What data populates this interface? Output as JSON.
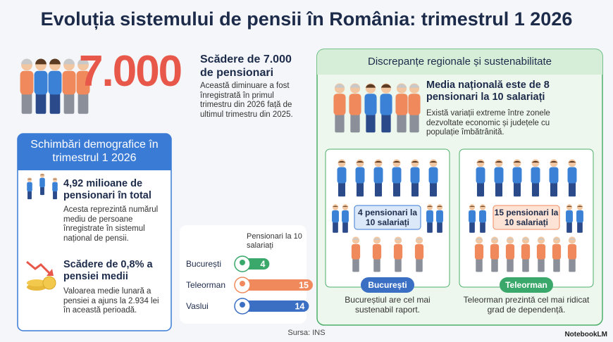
{
  "title": "Evoluția sistemului de pensii în România: trimestrul 1 2026",
  "highlight": {
    "number": "7.000",
    "heading": "Scădere de 7.000 de pensionari",
    "text": "Această diminuare a fost înregistrată în primul trimestru din 2026 față de ultimul trimestru din 2025."
  },
  "demographics": {
    "title": "Schimbări demografice în trimestrul 1 2026",
    "items": [
      {
        "heading": "4,92 milioane de pensionari în total",
        "text": "Acesta reprezintă numărul mediu de persoane înregistrate în sistemul național de pensii."
      },
      {
        "heading": "Scădere de 0,8% a pensiei medii",
        "text": "Valoarea medie lunară a pensiei a ajuns la 2.934 lei în această perioadă."
      }
    ]
  },
  "ratio_chart": {
    "header": "Pensionari la 10 salariați",
    "categories": [
      "București",
      "Teleorman",
      "Vaslui"
    ],
    "values": [
      4,
      15,
      14
    ],
    "colors": [
      "#3aa86a",
      "#f08a5d",
      "#3a6fc4"
    ]
  },
  "regional": {
    "title": "Discrepanțe regionale și sustenabilitate",
    "heading": "Media națională este de 8 pensionari la 10 salariați",
    "text": "Există variații extreme între zonele dezvoltate economic și județele cu populație îmbătrânită.",
    "panels": [
      {
        "ratio": "4 pensionari la 10 salariați",
        "label": "București",
        "caption": "Bucureștiul are cel mai sustenabil raport."
      },
      {
        "ratio": "15 pensionari la 10 salariați",
        "label": "Teleorman",
        "caption": "Teleorman prezintă cel mai ridicat grad de dependență."
      }
    ]
  },
  "source": "Sursa: INS",
  "brand": "NotebookLM"
}
